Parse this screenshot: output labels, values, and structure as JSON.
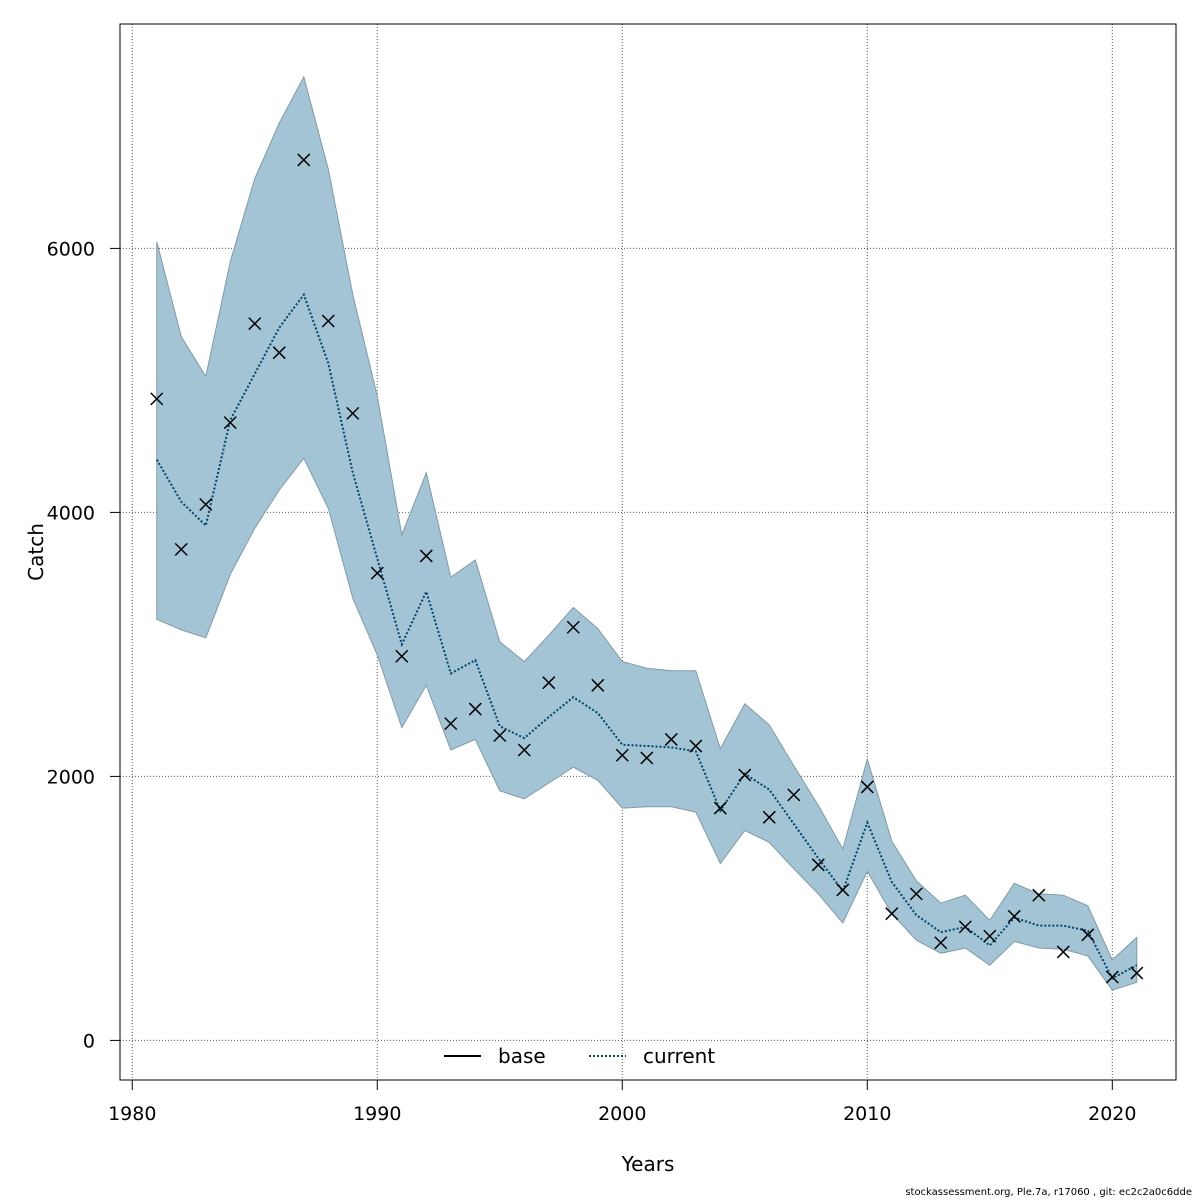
{
  "chart_data": {
    "type": "line",
    "xlabel": "Years",
    "ylabel": "Catch",
    "xlim": [
      1979.5,
      2022.6
    ],
    "ylim": [
      -300,
      7700
    ],
    "xticks": [
      1980,
      1990,
      2000,
      2010,
      2020
    ],
    "yticks": [
      0,
      2000,
      4000,
      6000
    ],
    "grid": true,
    "legend_position": "bottom-center",
    "colors": {
      "band": "#a3c4d5",
      "band_edge": "#7f9aa8",
      "current": "#00456b",
      "base": "#000000"
    },
    "legend": [
      {
        "label": "base",
        "style": "solid"
      },
      {
        "label": "current",
        "style": "dotted"
      }
    ],
    "x": [
      1981,
      1982,
      1983,
      1984,
      1985,
      1986,
      1987,
      1988,
      1989,
      1990,
      1991,
      1992,
      1993,
      1994,
      1995,
      1996,
      1997,
      1998,
      1999,
      2000,
      2001,
      2002,
      2003,
      2004,
      2005,
      2006,
      2007,
      2008,
      2009,
      2010,
      2011,
      2012,
      2013,
      2014,
      2015,
      2016,
      2017,
      2018,
      2019,
      2020,
      2021
    ],
    "series": [
      {
        "name": "current",
        "style": "dotted",
        "values": [
          4400,
          4080,
          3900,
          4700,
          5050,
          5400,
          5650,
          5130,
          4300,
          3650,
          3000,
          3400,
          2780,
          2880,
          2380,
          2290,
          2450,
          2600,
          2480,
          2240,
          2230,
          2220,
          2190,
          1740,
          2020,
          1900,
          1640,
          1380,
          1130,
          1650,
          1200,
          950,
          820,
          860,
          720,
          930,
          870,
          870,
          830,
          470,
          570
        ]
      },
      {
        "name": "band_upper",
        "values": [
          6050,
          5330,
          5030,
          5900,
          6530,
          6950,
          7300,
          6600,
          5650,
          4880,
          3830,
          4300,
          3510,
          3640,
          3020,
          2870,
          3070,
          3280,
          3120,
          2870,
          2820,
          2800,
          2800,
          2210,
          2550,
          2390,
          2080,
          1780,
          1450,
          2130,
          1510,
          1210,
          1040,
          1100,
          910,
          1190,
          1110,
          1100,
          1020,
          610,
          780
        ]
      },
      {
        "name": "band_lower",
        "values": [
          3190,
          3110,
          3050,
          3530,
          3880,
          4170,
          4410,
          4030,
          3350,
          2920,
          2370,
          2690,
          2200,
          2280,
          1890,
          1830,
          1950,
          2070,
          1970,
          1760,
          1770,
          1770,
          1730,
          1340,
          1590,
          1500,
          1300,
          1110,
          890,
          1280,
          960,
          760,
          660,
          700,
          570,
          750,
          700,
          690,
          640,
          380,
          440
        ]
      },
      {
        "name": "observed",
        "marker": "x",
        "values": [
          4860,
          3720,
          4060,
          4680,
          5430,
          5210,
          6670,
          5450,
          4750,
          3540,
          2910,
          3670,
          2400,
          2510,
          2310,
          2200,
          2710,
          3130,
          2690,
          2160,
          2140,
          2280,
          2230,
          1760,
          2010,
          1690,
          1860,
          1330,
          1140,
          1920,
          960,
          1110,
          740,
          860,
          790,
          940,
          1100,
          670,
          800,
          480,
          510
        ]
      }
    ]
  },
  "footer": "stockassessment.org, Ple.7a, r17060 , git: ec2c2a0c6dde"
}
